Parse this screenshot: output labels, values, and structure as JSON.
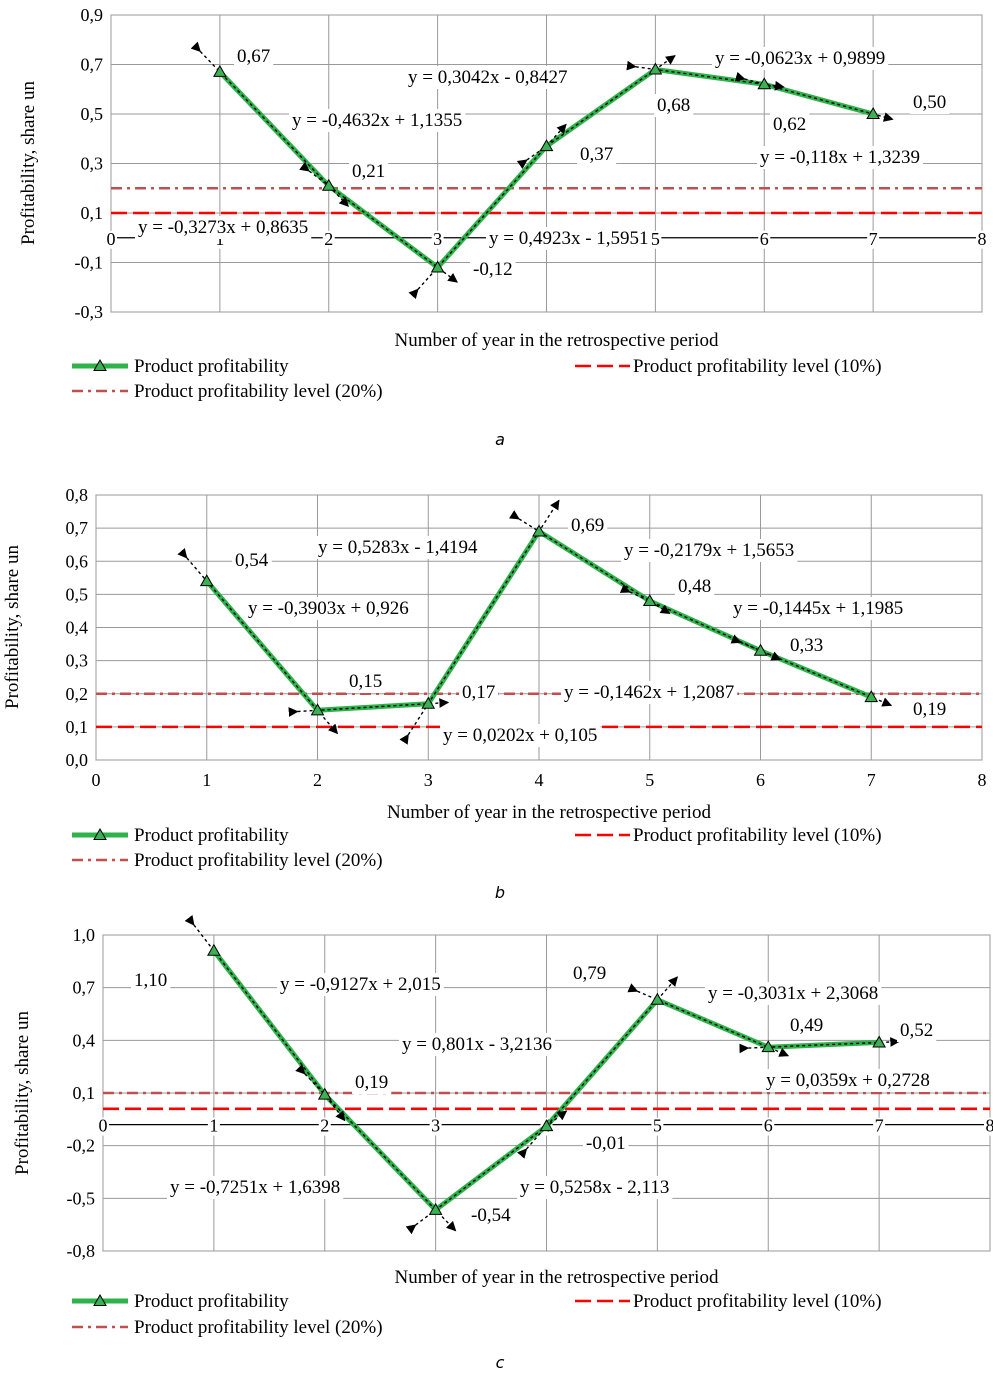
{
  "chart_data": [
    {
      "type": "line",
      "caption": "a",
      "xlabel": "Number of year in the retrospective period",
      "ylabel": "Profitability, share un",
      "xlim": [
        0,
        8
      ],
      "ylim": [
        -0.3,
        0.9
      ],
      "xticks": [
        "0",
        "1",
        "2",
        "3",
        "4",
        "5",
        "6",
        "7",
        "8"
      ],
      "yticks": [
        "-0,3",
        "-0,1",
        "0,1",
        "0,3",
        "0,5",
        "0,7",
        "0,9"
      ],
      "grid": true,
      "legend_position": "bottom",
      "series": [
        {
          "name": "Product profitability",
          "color": "#2db34a",
          "marker": "triangle",
          "x": [
            1,
            2,
            3,
            4,
            5,
            6,
            7
          ],
          "y": [
            0.67,
            0.21,
            -0.12,
            0.37,
            0.68,
            0.62,
            0.5
          ]
        },
        {
          "name": "Product profitability level (10%)",
          "color": "#ff0000",
          "style": "dashed",
          "value": 0.1
        },
        {
          "name": "Product profitability level (20%)",
          "color": "#c0504d",
          "style": "dash-dot",
          "value": 0.2
        }
      ],
      "point_labels": [
        "0,67",
        "0,21",
        "-0,12",
        "0,37",
        "0,68",
        "0,62",
        "0,50"
      ],
      "trendlines": [
        {
          "segment": [
            1,
            2
          ],
          "equation": "y = -0,4632x + 1,1355"
        },
        {
          "segment": [
            2,
            3
          ],
          "equation": "y = -0,3273x + 0,8635"
        },
        {
          "segment": [
            3,
            4
          ],
          "equation": "y = 0,4923x - 1,5951"
        },
        {
          "segment": [
            4,
            5
          ],
          "equation": "y = 0,3042x - 0,8427"
        },
        {
          "segment": [
            5,
            6
          ],
          "equation": "y = -0,0623x + 0,9899"
        },
        {
          "segment": [
            6,
            7
          ],
          "equation": "y = -0,118x + 1,3239"
        }
      ]
    },
    {
      "type": "line",
      "caption": "b",
      "xlabel": "Number of year in the retrospective period",
      "ylabel": "Profitability, share un",
      "xlim": [
        0,
        8
      ],
      "ylim": [
        0,
        0.8
      ],
      "xticks": [
        "0",
        "1",
        "2",
        "3",
        "4",
        "5",
        "6",
        "7",
        "8"
      ],
      "yticks": [
        "0,0",
        "0,1",
        "0,2",
        "0,3",
        "0,4",
        "0,5",
        "0,6",
        "0,7",
        "0,8"
      ],
      "grid": true,
      "legend_position": "bottom",
      "series": [
        {
          "name": "Product profitability",
          "color": "#2db34a",
          "marker": "triangle",
          "x": [
            1,
            2,
            3,
            4,
            5,
            6,
            7
          ],
          "y": [
            0.54,
            0.15,
            0.17,
            0.69,
            0.48,
            0.33,
            0.19
          ]
        },
        {
          "name": "Product profitability level (10%)",
          "color": "#ff0000",
          "style": "dashed",
          "value": 0.1
        },
        {
          "name": "Product profitability level (20%)",
          "color": "#c0504d",
          "style": "dash-dot",
          "value": 0.2
        }
      ],
      "point_labels": [
        "0,54",
        "0,15",
        "0,17",
        "0,69",
        "0,48",
        "0,33",
        "0,19"
      ],
      "trendlines": [
        {
          "segment": [
            1,
            2
          ],
          "equation": "y = -0,3903x + 0,926"
        },
        {
          "segment": [
            2,
            3
          ],
          "equation": "y = 0,0202x + 0,105"
        },
        {
          "segment": [
            3,
            4
          ],
          "equation": "y = 0,5283x - 1,4194"
        },
        {
          "segment": [
            4,
            5
          ],
          "equation": "y = -0,2179x + 1,5653"
        },
        {
          "segment": [
            5,
            6
          ],
          "equation": "y = -0,1445x + 1,1985"
        },
        {
          "segment": [
            6,
            7
          ],
          "equation": "y = -0,1462x + 1,2087"
        }
      ]
    },
    {
      "type": "line",
      "caption": "c",
      "xlabel": "Number of year in the retrospective period",
      "ylabel": "Profitability, share un",
      "xlim": [
        0,
        8
      ],
      "ylim": [
        -0.8,
        1.2
      ],
      "xticks": [
        "0",
        "1",
        "2",
        "3",
        "4",
        "5",
        "6",
        "7",
        "8"
      ],
      "yticks": [
        "-0,8",
        "-0,5",
        "-0,2",
        "0,1",
        "0,4",
        "0,7",
        "1,0"
      ],
      "grid": true,
      "legend_position": "bottom",
      "series": [
        {
          "name": "Product profitability",
          "color": "#2db34a",
          "marker": "triangle",
          "x": [
            1,
            2,
            3,
            4,
            5,
            6,
            7
          ],
          "y": [
            1.1,
            0.19,
            -0.54,
            -0.01,
            0.79,
            0.49,
            0.52
          ]
        },
        {
          "name": "Product profitability level (10%)",
          "color": "#ff0000",
          "style": "dashed",
          "value": 0.1
        },
        {
          "name": "Product profitability level (20%)",
          "color": "#c0504d",
          "style": "dash-dot",
          "value": 0.2
        }
      ],
      "point_labels": [
        "1,10",
        "0,19",
        "-0,54",
        "-0,01",
        "0,79",
        "0,49",
        "0,52"
      ],
      "trendlines": [
        {
          "segment": [
            1,
            2
          ],
          "equation": "y = -0,9127x + 2,015"
        },
        {
          "segment": [
            2,
            3
          ],
          "equation": "y = -0,7251x + 1,6398"
        },
        {
          "segment": [
            3,
            4
          ],
          "equation": "y = 0,5258x - 2,113"
        },
        {
          "segment": [
            4,
            5
          ],
          "equation": "y = 0,801x - 3,2136"
        },
        {
          "segment": [
            5,
            6
          ],
          "equation": "y = -0,3031x + 2,3068"
        },
        {
          "segment": [
            6,
            7
          ],
          "equation": "y = 0,0359x + 0,2728"
        }
      ]
    }
  ]
}
